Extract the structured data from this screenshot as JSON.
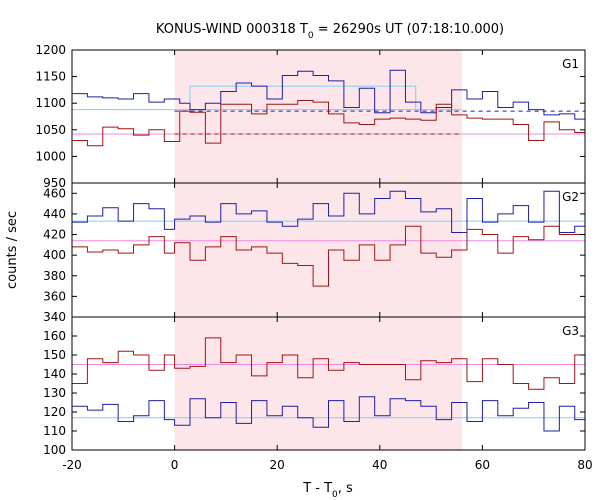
{
  "title_prefix": "KONUS-WIND 000318 T",
  "title_sub": "0",
  "title_suffix": " = 26290s UT (07:18:10.000)",
  "ylabel": "counts / sec",
  "xlabel_prefix": "T - T",
  "xlabel_sub": "0",
  "xlabel_suffix": ", s",
  "chart_data": {
    "type": "line",
    "x_range": [
      -20,
      80
    ],
    "x_ticks": [
      -20,
      0,
      20,
      40,
      60,
      80
    ],
    "shaded_interval": [
      0,
      56
    ],
    "shade_color": "#fde6e9",
    "series_colors": {
      "blue": "#1f1fa8",
      "red": "#a01515",
      "cyan": "#7fd0f0",
      "pink": "#f08ae0"
    },
    "panels": [
      {
        "label": "G1",
        "ylim": [
          950,
          1200
        ],
        "y_ticks": [
          950,
          1000,
          1050,
          1100,
          1150,
          1200
        ],
        "blue_steps": {
          "edges": [
            -20,
            -17,
            -14,
            -11,
            -8,
            -5,
            -2,
            1,
            3,
            6,
            9,
            12,
            15,
            18,
            21,
            24,
            27,
            30,
            33,
            36,
            39,
            42,
            45,
            48,
            51,
            54,
            57,
            60,
            63,
            66,
            69,
            72,
            75,
            78,
            80
          ],
          "values": [
            1118,
            1112,
            1110,
            1108,
            1118,
            1102,
            1108,
            1100,
            1088,
            1100,
            1122,
            1138,
            1132,
            1108,
            1152,
            1160,
            1152,
            1142,
            1092,
            1128,
            1082,
            1162,
            1102,
            1082,
            1092,
            1125,
            1108,
            1122,
            1092,
            1102,
            1088,
            1078,
            1080,
            1070
          ]
        },
        "red_steps": {
          "edges": [
            -20,
            -17,
            -14,
            -11,
            -8,
            -5,
            -2,
            1,
            3,
            6,
            9,
            12,
            15,
            18,
            21,
            24,
            27,
            30,
            33,
            36,
            39,
            42,
            45,
            48,
            51,
            54,
            57,
            60,
            63,
            66,
            69,
            72,
            75,
            78,
            80
          ],
          "values": [
            1030,
            1020,
            1055,
            1052,
            1040,
            1050,
            1028,
            1085,
            1083,
            1025,
            1098,
            1098,
            1080,
            1098,
            1098,
            1105,
            1102,
            1080,
            1063,
            1060,
            1070,
            1072,
            1070,
            1068,
            1098,
            1078,
            1072,
            1070,
            1070,
            1060,
            1030,
            1065,
            1050,
            1045
          ]
        },
        "cyan_fit": {
          "segments": [
            [
              -20,
              56,
              1088
            ]
          ],
          "box": [
            3,
            47,
            1085,
            1132
          ]
        },
        "pink_fit": {
          "segments": [
            [
              -20,
              80,
              1042
            ]
          ]
        },
        "blue_dashed": [
          [
            0,
            80,
            1085
          ]
        ],
        "red_dashed": [
          [
            0,
            56,
            1042
          ]
        ]
      },
      {
        "label": "G2",
        "ylim": [
          340,
          470
        ],
        "y_ticks": [
          340,
          360,
          380,
          400,
          420,
          440,
          460
        ],
        "blue_steps": {
          "edges": [
            -20,
            -17,
            -14,
            -11,
            -8,
            -5,
            -2,
            0,
            3,
            6,
            9,
            12,
            15,
            18,
            21,
            24,
            27,
            30,
            33,
            36,
            39,
            42,
            45,
            48,
            51,
            54,
            57,
            60,
            63,
            66,
            69,
            72,
            75,
            78,
            80
          ],
          "values": [
            432,
            438,
            446,
            433,
            450,
            445,
            425,
            435,
            438,
            432,
            450,
            440,
            443,
            432,
            428,
            435,
            450,
            438,
            460,
            440,
            455,
            462,
            455,
            442,
            445,
            422,
            455,
            432,
            440,
            448,
            432,
            462,
            422,
            428
          ]
        },
        "red_steps": {
          "edges": [
            -20,
            -17,
            -14,
            -11,
            -8,
            -5,
            -2,
            0,
            3,
            6,
            9,
            12,
            15,
            18,
            21,
            24,
            27,
            30,
            33,
            36,
            39,
            42,
            45,
            48,
            51,
            54,
            57,
            60,
            63,
            66,
            69,
            72,
            75,
            78,
            80
          ],
          "values": [
            408,
            403,
            405,
            402,
            410,
            418,
            402,
            412,
            395,
            408,
            418,
            405,
            408,
            402,
            392,
            390,
            370,
            405,
            395,
            410,
            395,
            410,
            428,
            402,
            398,
            405,
            425,
            420,
            402,
            418,
            415,
            428,
            420,
            420
          ]
        },
        "cyan_fit": {
          "segments": [
            [
              -20,
              80,
              433
            ]
          ]
        },
        "pink_fit": {
          "segments": [
            [
              -20,
              80,
              414
            ]
          ]
        }
      },
      {
        "label": "G3",
        "ylim": [
          100,
          170
        ],
        "y_ticks": [
          100,
          110,
          120,
          130,
          140,
          150,
          160
        ],
        "blue_steps": {
          "edges": [
            -20,
            -17,
            -14,
            -11,
            -8,
            -5,
            -2,
            0,
            3,
            6,
            9,
            12,
            15,
            18,
            21,
            24,
            27,
            30,
            33,
            36,
            39,
            42,
            45,
            48,
            51,
            54,
            57,
            60,
            63,
            66,
            69,
            72,
            75,
            78,
            80
          ],
          "values": [
            123,
            121,
            124,
            115,
            118,
            126,
            116,
            113,
            127,
            117,
            125,
            114,
            126,
            118,
            123,
            117,
            112,
            126,
            115,
            128,
            118,
            127,
            126,
            123,
            116,
            125,
            115,
            126,
            118,
            122,
            125,
            110,
            123,
            116
          ]
        },
        "red_steps": {
          "edges": [
            -20,
            -17,
            -14,
            -11,
            -8,
            -5,
            -2,
            0,
            3,
            6,
            9,
            12,
            15,
            18,
            21,
            24,
            27,
            30,
            33,
            36,
            39,
            42,
            45,
            48,
            51,
            54,
            57,
            60,
            63,
            66,
            69,
            72,
            75,
            78,
            80
          ],
          "values": [
            135,
            148,
            146,
            152,
            150,
            142,
            150,
            143,
            144,
            159,
            146,
            150,
            139,
            146,
            150,
            138,
            148,
            142,
            146,
            145,
            145,
            145,
            137,
            147,
            146,
            148,
            136,
            148,
            145,
            135,
            132,
            138,
            135,
            150
          ]
        },
        "cyan_fit": {
          "segments": [
            [
              -20,
              80,
              117
            ]
          ]
        },
        "pink_fit": {
          "segments": [
            [
              -20,
              80,
              145
            ]
          ]
        }
      }
    ]
  }
}
